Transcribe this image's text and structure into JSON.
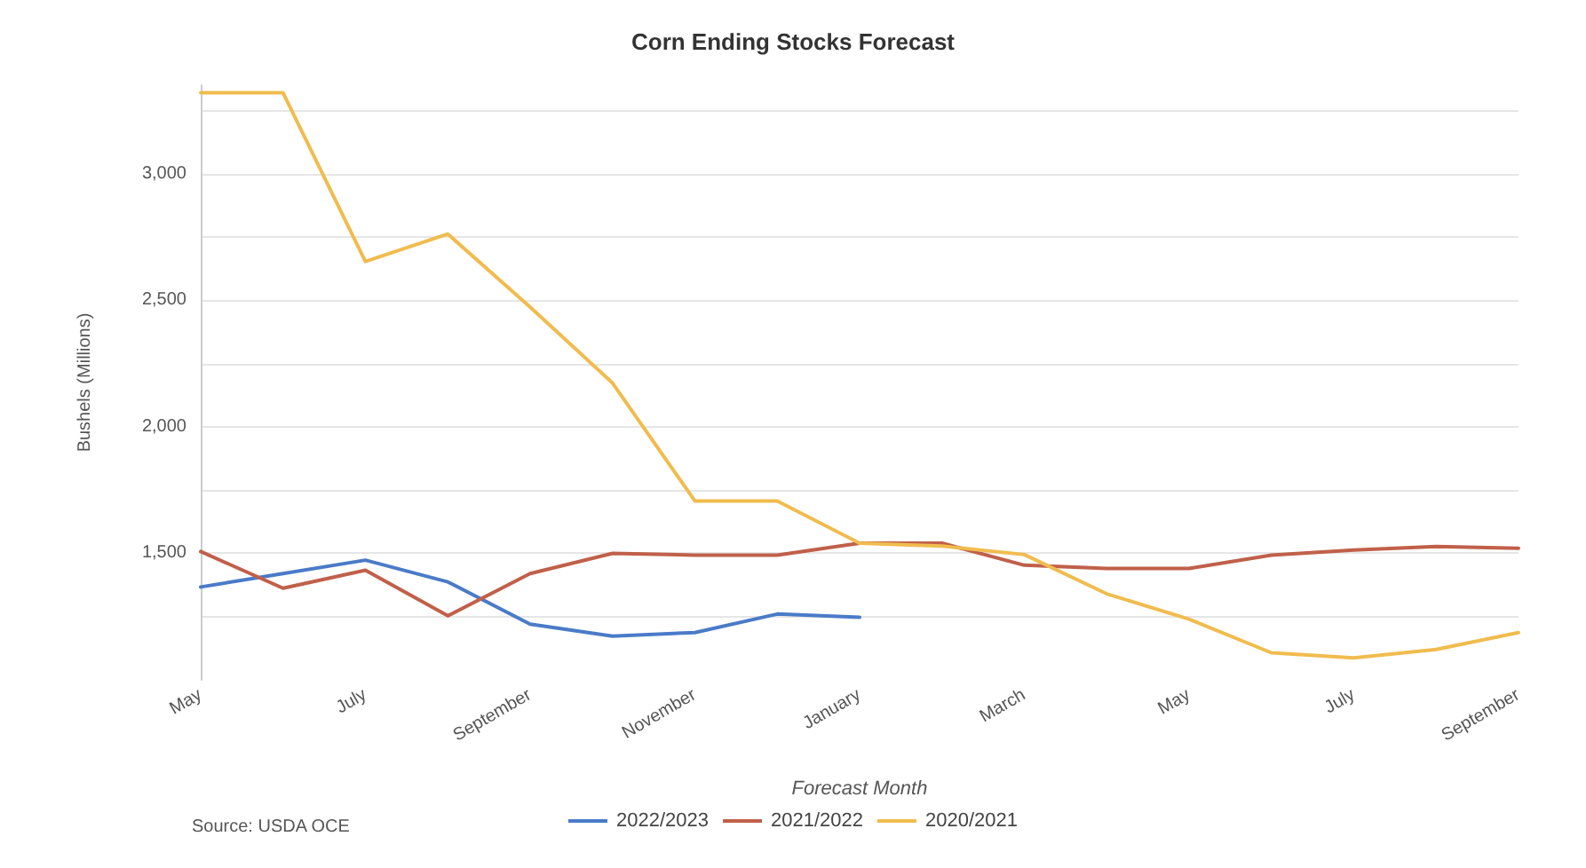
{
  "chart_data": {
    "type": "line",
    "title": "Corn Ending Stocks Forecast",
    "xlabel": "Forecast Month",
    "ylabel": "Bushels (Millions)",
    "annotations": [
      "Source: USDA OCE"
    ],
    "categories": [
      "May",
      null,
      "July",
      null,
      "September",
      null,
      "November",
      null,
      "January",
      null,
      "March",
      null,
      "May",
      null,
      "July",
      null,
      "September"
    ],
    "series": [
      {
        "name": "2022/2023",
        "color": "#4a7bc8",
        "values": [
          1367,
          1420,
          1473,
          1387,
          1220,
          1173,
          1187,
          1260,
          1247,
          null,
          null,
          null,
          null,
          null,
          null,
          null,
          null
        ]
      },
      {
        "name": "2021/2022",
        "color": "#c0604a",
        "values": [
          1507,
          1362,
          1433,
          1253,
          1420,
          1500,
          1493,
          1493,
          1540,
          1540,
          1453,
          1440,
          1440,
          1493,
          1513,
          1527,
          1520
        ]
      },
      {
        "name": "2020/2021",
        "color": "#f0bc4e",
        "values": [
          3320,
          3320,
          2653,
          2762,
          2473,
          2173,
          1707,
          1707,
          1540,
          1529,
          1495,
          1340,
          1240,
          1107,
          1087,
          1120,
          1187
        ]
      }
    ],
    "ylim": [
      1000,
      3350
    ],
    "yticks": [
      {
        "value": 1250,
        "label": null
      },
      {
        "value": 1500,
        "label": "1,500"
      },
      {
        "value": 1750,
        "label": null
      },
      {
        "value": 2000,
        "label": "2,000"
      },
      {
        "value": 2250,
        "label": null
      },
      {
        "value": 2500,
        "label": "2,500"
      },
      {
        "value": 2750,
        "label": null
      },
      {
        "value": 3000,
        "label": "3,000"
      },
      {
        "value": 3250,
        "label": null
      }
    ],
    "grid": "y",
    "legend": "bottom",
    "line_style": "solid"
  }
}
